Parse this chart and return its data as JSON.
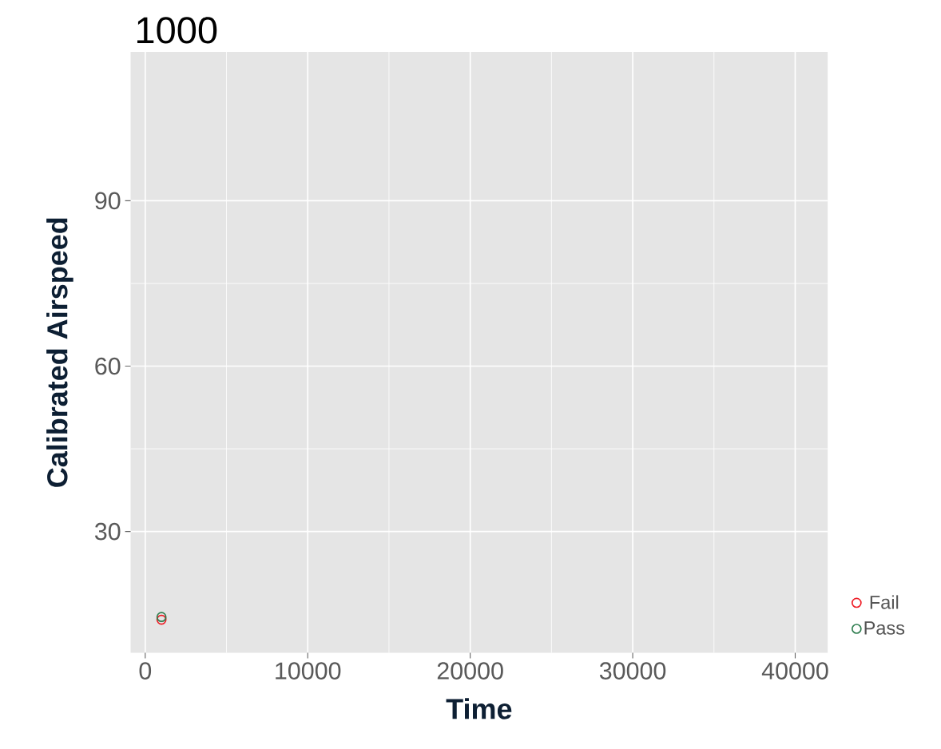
{
  "chart_data": {
    "type": "scatter",
    "title": "1000",
    "xlabel": "Time",
    "ylabel": "Calibrated Airspeed",
    "xlim": [
      -900,
      42000
    ],
    "ylim": [
      8,
      117
    ],
    "xticks": [
      0,
      10000,
      20000,
      30000,
      40000
    ],
    "yticks": [
      30,
      60,
      90
    ],
    "grid": true,
    "legend": "right",
    "marker": "circle",
    "series": [
      {
        "name": "Fail",
        "color": "#ee1c25",
        "x": [
          1000
        ],
        "values": [
          14.0
        ]
      },
      {
        "name": "Pass",
        "color": "#2e7d4f",
        "x": [
          1000
        ],
        "values": [
          14.5
        ]
      }
    ]
  }
}
